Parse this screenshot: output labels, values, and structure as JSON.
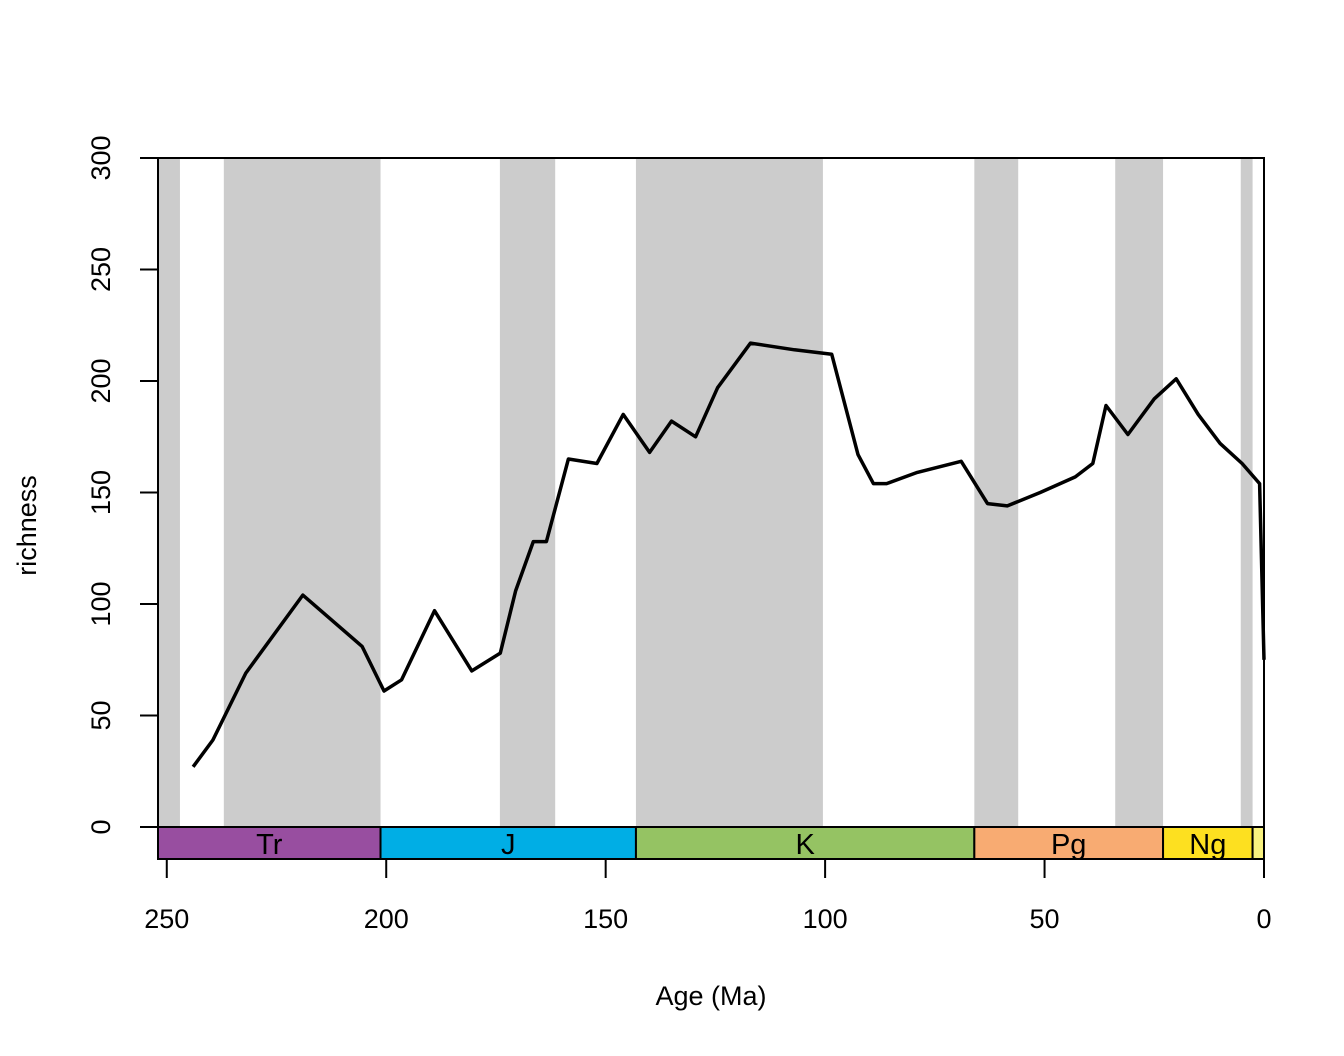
{
  "chart_data": {
    "type": "line",
    "xlabel": "Age (Ma)",
    "ylabel": "richness",
    "xlim": [
      252,
      0
    ],
    "ylim": [
      0,
      300
    ],
    "x_reversed": true,
    "x_ticks": [
      250,
      200,
      150,
      100,
      50,
      0
    ],
    "y_ticks": [
      0,
      50,
      100,
      150,
      200,
      250,
      300
    ],
    "grid": false,
    "line_color": "#000000",
    "shading_color": "#cccccc",
    "shaded_bands": [
      {
        "from": 252,
        "to": 247
      },
      {
        "from": 237,
        "to": 201.3
      },
      {
        "from": 174.1,
        "to": 161.5
      },
      {
        "from": 143.1,
        "to": 100.5
      },
      {
        "from": 66.0,
        "to": 56.0
      },
      {
        "from": 33.9,
        "to": 23.0
      },
      {
        "from": 5.3,
        "to": 2.6
      }
    ],
    "periods": [
      {
        "label": "Tr",
        "from": 252,
        "to": 201.3,
        "color": "#984ea0"
      },
      {
        "label": "J",
        "from": 201.3,
        "to": 143.1,
        "color": "#00aee5"
      },
      {
        "label": "K",
        "from": 143.1,
        "to": 66.0,
        "color": "#95c363"
      },
      {
        "label": "Pg",
        "from": 66.0,
        "to": 23.0,
        "color": "#f8ab72"
      },
      {
        "label": "Ng",
        "from": 23.0,
        "to": 2.6,
        "color": "#fde020"
      },
      {
        "label": "",
        "from": 2.6,
        "to": 0,
        "color": "#f9f27f"
      }
    ],
    "series": [
      {
        "x": [
          244,
          239.5,
          232,
          219,
          205.5,
          200.5,
          196.5,
          189,
          180.5,
          174,
          170.5,
          166.5,
          163.5,
          158.5,
          152,
          146,
          140,
          135,
          129.5,
          124.5,
          117,
          107,
          98.5,
          92.5,
          89,
          86,
          79,
          69,
          63,
          58.5,
          51,
          43,
          39,
          36,
          31,
          25,
          20,
          15,
          10,
          5,
          1,
          0
        ],
        "y": [
          27,
          39,
          69,
          104,
          81,
          61,
          66,
          97,
          70,
          78,
          106,
          128,
          128,
          165,
          163,
          185,
          168,
          182,
          175,
          197,
          217,
          214,
          212,
          167,
          154,
          154,
          159,
          164,
          145,
          144,
          150,
          157,
          163,
          189,
          176,
          192,
          201,
          185,
          172,
          163,
          154,
          75
        ]
      }
    ]
  }
}
